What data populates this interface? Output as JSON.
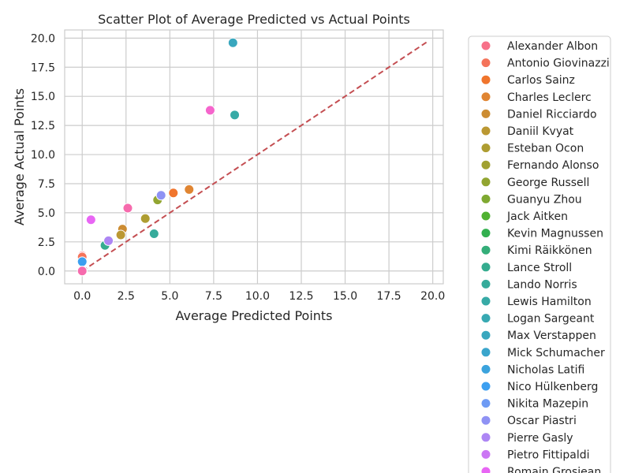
{
  "chart_data": {
    "type": "scatter",
    "title": "Scatter Plot of Average Predicted vs Actual Points",
    "xlabel": "Average Predicted Points",
    "ylabel": "Average Actual Points",
    "xlim": [
      -1,
      20.6
    ],
    "ylim": [
      -1.1,
      20.7
    ],
    "xticks": [
      0.0,
      2.5,
      5.0,
      7.5,
      10.0,
      12.5,
      15.0,
      17.5,
      20.0
    ],
    "yticks": [
      0.0,
      2.5,
      5.0,
      7.5,
      10.0,
      12.5,
      15.0,
      17.5,
      20.0
    ],
    "xtick_labels": [
      "0.0",
      "2.5",
      "5.0",
      "7.5",
      "10.0",
      "12.5",
      "15.0",
      "17.5",
      "20.0"
    ],
    "ytick_labels": [
      "0.0",
      "2.5",
      "5.0",
      "7.5",
      "10.0",
      "12.5",
      "15.0",
      "17.5",
      "20.0"
    ],
    "grid": true,
    "legend_position": "outside-right",
    "reference_line": {
      "x": [
        0,
        19.7
      ],
      "y": [
        0,
        19.7
      ],
      "style": "dashed",
      "color": "#c44e52"
    },
    "series": [
      {
        "name": "Alexander Albon",
        "color": "#f77189",
        "x": 0.0,
        "y": 1.3
      },
      {
        "name": "Antonio Giovinazzi",
        "color": "#f4735a",
        "x": 0.0,
        "y": 1.2
      },
      {
        "name": "Carlos Sainz",
        "color": "#f0752d",
        "x": 5.2,
        "y": 6.7
      },
      {
        "name": "Charles Leclerc",
        "color": "#e08532",
        "x": 6.1,
        "y": 7.0
      },
      {
        "name": "Daniel Ricciardo",
        "color": "#cc8c32",
        "x": 2.3,
        "y": 3.6
      },
      {
        "name": "Daniil Kvyat",
        "color": "#bb9832",
        "x": 2.2,
        "y": 3.1
      },
      {
        "name": "Esteban Ocon",
        "color": "#ae9d31",
        "x": 3.6,
        "y": 4.5
      },
      {
        "name": "Fernando Alonso",
        "color": "#a1a131",
        "x": 0.0,
        "y": 0.0
      },
      {
        "name": "George Russell",
        "color": "#92a531",
        "x": 4.3,
        "y": 6.1
      },
      {
        "name": "Guanyu Zhou",
        "color": "#7fa931",
        "x": 0.0,
        "y": 0.0
      },
      {
        "name": "Jack Aitken",
        "color": "#50b131",
        "x": 0.0,
        "y": 0.0
      },
      {
        "name": "Kevin Magnussen",
        "color": "#33b04f",
        "x": 0.0,
        "y": 0.0
      },
      {
        "name": "Kimi Räikkönen",
        "color": "#34ae79",
        "x": 0.0,
        "y": 0.0
      },
      {
        "name": "Lance Stroll",
        "color": "#35ac8f",
        "x": 1.3,
        "y": 2.2
      },
      {
        "name": "Lando Norris",
        "color": "#36ab9b",
        "x": 4.1,
        "y": 3.2
      },
      {
        "name": "Lewis Hamilton",
        "color": "#37aaa6",
        "x": 8.7,
        "y": 13.4
      },
      {
        "name": "Logan Sargeant",
        "color": "#38a9b2",
        "x": 0.0,
        "y": 0.0
      },
      {
        "name": "Max Verstappen",
        "color": "#39a7be",
        "x": 8.6,
        "y": 19.6
      },
      {
        "name": "Mick Schumacher",
        "color": "#3aa5cc",
        "x": 0.0,
        "y": 0.0
      },
      {
        "name": "Nicholas Latifi",
        "color": "#3ba3dd",
        "x": 0.0,
        "y": 0.0
      },
      {
        "name": "Nico Hülkenberg",
        "color": "#3c9ff0",
        "x": 0.0,
        "y": 0.8
      },
      {
        "name": "Nikita Mazepin",
        "color": "#6e9bf4",
        "x": 0.0,
        "y": 0.0
      },
      {
        "name": "Oscar Piastri",
        "color": "#8f92f4",
        "x": 4.5,
        "y": 6.5
      },
      {
        "name": "Pierre Gasly",
        "color": "#ad86f4",
        "x": 1.5,
        "y": 2.6
      },
      {
        "name": "Pietro Fittipaldi",
        "color": "#cb77f4",
        "x": 0.0,
        "y": 0.0
      },
      {
        "name": "Romain Grosjean",
        "color": "#e866f4",
        "x": 0.5,
        "y": 4.4
      },
      {
        "name": "",
        "color": "#f565cc",
        "x": 7.3,
        "y": 13.8
      },
      {
        "name": "",
        "color": "#f66bad",
        "x": 2.6,
        "y": 5.4
      },
      {
        "name": "",
        "color": "#f66bad",
        "x": 0.0,
        "y": 0.0
      }
    ]
  }
}
